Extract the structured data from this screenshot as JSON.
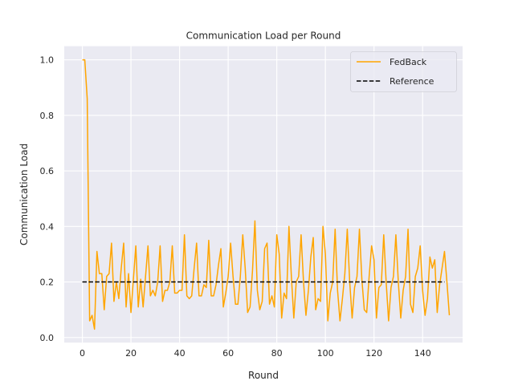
{
  "chart_data": {
    "type": "line",
    "title": "Communication Load per Round",
    "xlabel": "Round",
    "ylabel": "Communication Load",
    "xlim": [
      -7.45,
      156.45
    ],
    "ylim": [
      -0.0185,
      1.049
    ],
    "xticks": [
      0,
      20,
      40,
      60,
      80,
      100,
      120,
      140
    ],
    "yticks": [
      0.0,
      0.2,
      0.4,
      0.6,
      0.8,
      1.0
    ],
    "xtick_labels": [
      "0",
      "20",
      "40",
      "60",
      "80",
      "100",
      "120",
      "140"
    ],
    "ytick_labels": [
      "0.0",
      "0.2",
      "0.4",
      "0.6",
      "0.8",
      "1.0"
    ],
    "grid": true,
    "legend_position": "top-right",
    "series": [
      {
        "name": "FedBack",
        "color": "#ffa500",
        "style": "solid",
        "values": [
          1.0,
          1.0,
          0.86,
          0.06,
          0.08,
          0.03,
          0.31,
          0.23,
          0.23,
          0.1,
          0.22,
          0.23,
          0.34,
          0.13,
          0.2,
          0.14,
          0.25,
          0.34,
          0.11,
          0.23,
          0.09,
          0.21,
          0.33,
          0.11,
          0.21,
          0.11,
          0.22,
          0.33,
          0.15,
          0.17,
          0.15,
          0.2,
          0.33,
          0.13,
          0.17,
          0.17,
          0.2,
          0.33,
          0.16,
          0.16,
          0.17,
          0.17,
          0.37,
          0.15,
          0.14,
          0.15,
          0.25,
          0.34,
          0.15,
          0.15,
          0.19,
          0.18,
          0.35,
          0.15,
          0.15,
          0.19,
          0.26,
          0.32,
          0.11,
          0.16,
          0.22,
          0.34,
          0.22,
          0.12,
          0.12,
          0.22,
          0.37,
          0.25,
          0.09,
          0.11,
          0.24,
          0.42,
          0.17,
          0.1,
          0.13,
          0.32,
          0.34,
          0.12,
          0.15,
          0.11,
          0.37,
          0.3,
          0.07,
          0.16,
          0.14,
          0.4,
          0.22,
          0.07,
          0.2,
          0.22,
          0.37,
          0.2,
          0.08,
          0.17,
          0.29,
          0.36,
          0.1,
          0.14,
          0.13,
          0.4,
          0.3,
          0.06,
          0.16,
          0.2,
          0.39,
          0.17,
          0.06,
          0.14,
          0.23,
          0.39,
          0.2,
          0.07,
          0.18,
          0.22,
          0.39,
          0.21,
          0.1,
          0.09,
          0.22,
          0.33,
          0.28,
          0.07,
          0.18,
          0.19,
          0.37,
          0.2,
          0.06,
          0.18,
          0.22,
          0.37,
          0.2,
          0.07,
          0.17,
          0.22,
          0.39,
          0.12,
          0.09,
          0.22,
          0.25,
          0.33,
          0.17,
          0.08,
          0.14,
          0.29,
          0.25,
          0.28,
          0.09,
          0.19,
          0.25,
          0.31,
          0.2,
          0.08
        ]
      },
      {
        "name": "Reference",
        "color": "#000000",
        "style": "dashed",
        "x": [
          0,
          149
        ],
        "values": [
          0.2,
          0.2
        ]
      }
    ]
  }
}
